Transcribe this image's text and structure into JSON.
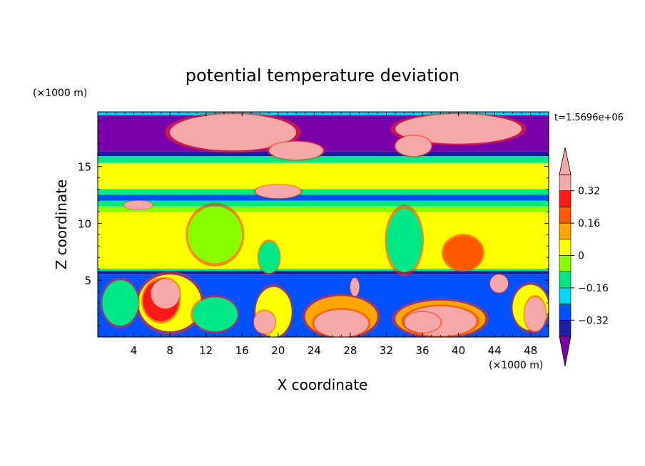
{
  "chart_data": {
    "type": "heatmap",
    "title": "potential temperature deviation",
    "time_label": "t=1.5696e+06",
    "xlabel": "X coordinate",
    "ylabel": "Z coordinate",
    "x_unit": "(×1000 m)",
    "y_unit": "(×1000 m)",
    "xlim": [
      0,
      50
    ],
    "ylim": [
      0,
      19.8
    ],
    "x_ticks": [
      4,
      8,
      12,
      16,
      20,
      24,
      28,
      32,
      36,
      40,
      44,
      48
    ],
    "y_ticks": [
      5,
      10,
      15
    ],
    "colorbar": {
      "levels": [
        -0.4,
        -0.32,
        -0.24,
        -0.16,
        -0.08,
        0,
        0.08,
        0.16,
        0.24,
        0.32,
        0.4
      ],
      "tick_labels": [
        "0.32",
        "0.16",
        "0",
        "−0.16",
        "−0.32"
      ],
      "tick_values": [
        0.32,
        0.16,
        0,
        -0.16,
        -0.32
      ],
      "colors": [
        "#7a00aa",
        "#1c1ca8",
        "#0050ff",
        "#00d8ff",
        "#00e885",
        "#88ff00",
        "#ffff00",
        "#ffa500",
        "#ff5a00",
        "#ff1818",
        "#f4a8a8"
      ],
      "under_color": "#7a00aa",
      "over_color": "#f4a8a8"
    },
    "bands": [
      {
        "z": [
          19.5,
          19.8
        ],
        "value": -0.2
      },
      {
        "z": [
          16.3,
          19.5
        ],
        "value": -0.42
      },
      {
        "z": [
          15.9,
          16.3
        ],
        "value": -0.35
      },
      {
        "z": [
          15.3,
          15.9
        ],
        "value": -0.14
      },
      {
        "z": [
          13.0,
          15.3
        ],
        "value": 0.05
      },
      {
        "z": [
          12.5,
          13.0
        ],
        "value": -0.12
      },
      {
        "z": [
          12.0,
          12.5
        ],
        "value": -0.3
      },
      {
        "z": [
          11.5,
          12.0
        ],
        "value": -0.15
      },
      {
        "z": [
          11.0,
          11.5
        ],
        "value": -0.02
      },
      {
        "z": [
          6.0,
          11.0
        ],
        "value": 0.05
      },
      {
        "z": [
          5.8,
          6.0
        ],
        "value": -0.1
      },
      {
        "z": [
          5.5,
          5.8
        ],
        "value": -0.35
      },
      {
        "z": [
          0,
          5.5
        ],
        "value": -0.28
      }
    ],
    "features": [
      {
        "value": 0.45,
        "x": 15,
        "z": 18.0,
        "rx": 7,
        "rz": 1.6
      },
      {
        "value": 0.45,
        "x": 22,
        "z": 16.4,
        "rx": 3,
        "rz": 0.8
      },
      {
        "value": 0.45,
        "x": 40,
        "z": 18.3,
        "rx": 7,
        "rz": 1.3
      },
      {
        "value": 0.45,
        "x": 35,
        "z": 16.8,
        "rx": 2,
        "rz": 0.9
      },
      {
        "value": 0.45,
        "x": 20,
        "z": 12.8,
        "rx": 2.5,
        "rz": 0.6
      },
      {
        "value": 0.45,
        "x": 4.5,
        "z": 11.6,
        "rx": 1.6,
        "rz": 0.4
      },
      {
        "value": 0.2,
        "x": 40.5,
        "z": 7.4,
        "rx": 2.2,
        "rz": 1.5
      },
      {
        "value": -0.14,
        "x": 19,
        "z": 7.0,
        "rx": 1.2,
        "rz": 1.4
      },
      {
        "value": -0.14,
        "x": 34,
        "z": 8.5,
        "rx": 2.0,
        "rz": 2.8
      },
      {
        "value": -0.06,
        "x": 13,
        "z": 9.0,
        "rx": 3.0,
        "rz": 2.5
      },
      {
        "value": 0.05,
        "x": 8,
        "z": 3.0,
        "rx": 3.5,
        "rz": 2.5
      },
      {
        "value": 0.3,
        "x": 7,
        "z": 3.2,
        "rx": 2.0,
        "rz": 1.8
      },
      {
        "value": 0.45,
        "x": 7.5,
        "z": 3.8,
        "rx": 1.6,
        "rz": 1.3
      },
      {
        "value": 0.05,
        "x": 19.5,
        "z": 2.2,
        "rx": 2.0,
        "rz": 2.2
      },
      {
        "value": 0.35,
        "x": 18.5,
        "z": 1.3,
        "rx": 1.2,
        "rz": 1.0
      },
      {
        "value": 0.1,
        "x": 27,
        "z": 1.8,
        "rx": 4.0,
        "rz": 1.8
      },
      {
        "value": 0.34,
        "x": 27,
        "z": 1.2,
        "rx": 3.0,
        "rz": 1.2
      },
      {
        "value": 0.45,
        "x": 28.5,
        "z": 4.4,
        "rx": 0.5,
        "rz": 0.8
      },
      {
        "value": 0.1,
        "x": 38,
        "z": 1.6,
        "rx": 5.0,
        "rz": 1.6
      },
      {
        "value": 0.32,
        "x": 38,
        "z": 1.4,
        "rx": 4.0,
        "rz": 1.3
      },
      {
        "value": 0.45,
        "x": 36,
        "z": 1.3,
        "rx": 2.0,
        "rz": 0.9
      },
      {
        "value": 0.45,
        "x": 44.5,
        "z": 4.7,
        "rx": 1.0,
        "rz": 0.8
      },
      {
        "value": 0.05,
        "x": 48,
        "z": 2.6,
        "rx": 2.0,
        "rz": 2.0
      },
      {
        "value": 0.45,
        "x": 48.5,
        "z": 2.0,
        "rx": 1.2,
        "rz": 1.5
      },
      {
        "value": -0.14,
        "x": 13,
        "z": 2.0,
        "rx": 2.5,
        "rz": 1.5
      },
      {
        "value": -0.14,
        "x": 2.5,
        "z": 3.0,
        "rx": 2.0,
        "rz": 2.0
      }
    ]
  }
}
